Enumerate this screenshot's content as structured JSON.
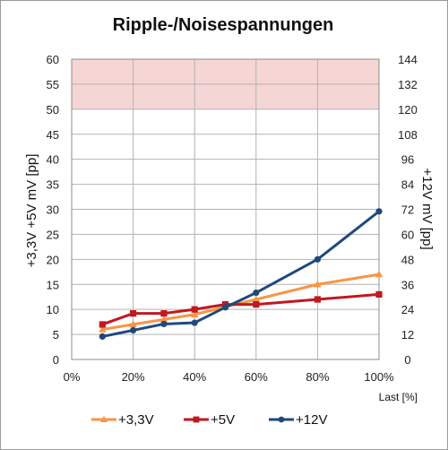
{
  "chart_data": {
    "type": "line",
    "title": "Ripple-/Noisespannungen",
    "xlabel": "Last [%]",
    "ylabel_left": "+3,3V +5V   mV [pp]",
    "ylabel_right": "+12V   mV [pp]",
    "ylim_left": [
      0,
      60
    ],
    "ylim_right": [
      0,
      144
    ],
    "xlim": [
      0,
      100
    ],
    "x_ticks": [
      "0%",
      "20%",
      "40%",
      "60%",
      "80%",
      "100%"
    ],
    "y_ticks_left": [
      "0",
      "5",
      "10",
      "15",
      "20",
      "25",
      "30",
      "35",
      "40",
      "45",
      "50",
      "55",
      "60"
    ],
    "y_ticks_right": [
      "0",
      "12",
      "24",
      "36",
      "48",
      "60",
      "72",
      "84",
      "96",
      "108",
      "120",
      "132",
      "144"
    ],
    "grid": true,
    "limit_band": {
      "axis": "left",
      "from": 50,
      "to": 60,
      "color": "#f6d5d5"
    },
    "legend_position": "bottom",
    "series": [
      {
        "name": "+3,3V",
        "axis": "left",
        "color": "#f79646",
        "marker": "triangle",
        "x": [
          10,
          20,
          30,
          40,
          50,
          60,
          80,
          100
        ],
        "values": [
          6,
          7,
          8,
          9,
          10.5,
          12,
          15,
          17
        ]
      },
      {
        "name": "+5V",
        "axis": "left",
        "color": "#c0191f",
        "marker": "square",
        "x": [
          10,
          20,
          30,
          40,
          50,
          60,
          80,
          100
        ],
        "values": [
          7,
          9.2,
          9.2,
          10,
          11,
          11,
          12,
          13
        ]
      },
      {
        "name": "+12V",
        "axis": "right",
        "color": "#1f497d",
        "marker": "circle",
        "x": [
          10,
          20,
          30,
          40,
          50,
          60,
          80,
          100
        ],
        "values": [
          11,
          14,
          17,
          17.6,
          25,
          32,
          48,
          71
        ]
      }
    ]
  }
}
